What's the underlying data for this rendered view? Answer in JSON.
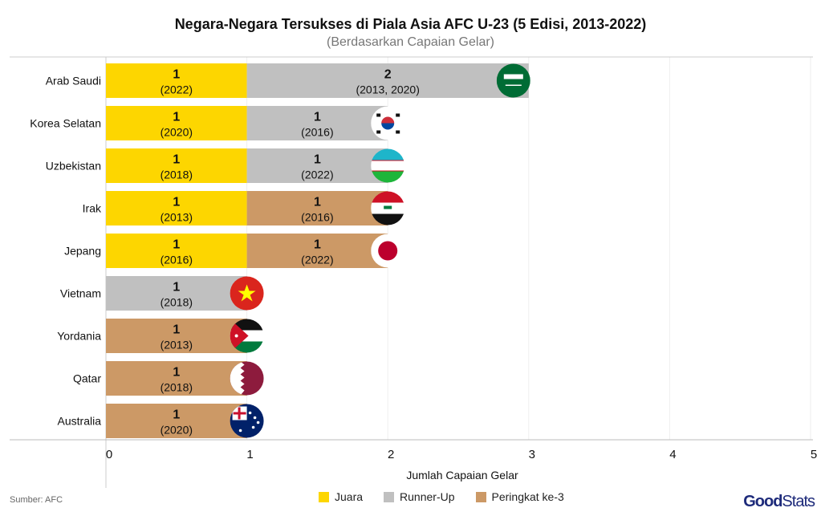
{
  "chart_data": {
    "type": "bar",
    "orientation": "horizontal-stacked",
    "title": "Negara-Negara Tersukses di Piala Asia AFC U-23 (5 Edisi, 2013-2022)",
    "subtitle": "(Berdasarkan Capaian Gelar)",
    "xlabel": "Jumlah Capaian Gelar",
    "ylabel": "",
    "xlim": [
      0,
      5
    ],
    "xticks": [
      "0",
      "1",
      "2",
      "3",
      "4",
      "5"
    ],
    "grid": true,
    "legend_placement": "bottom",
    "categories": [
      "Arab Saudi",
      "Korea Selatan",
      "Uzbekistan",
      "Irak",
      "Jepang",
      "Vietnam",
      "Yordania",
      "Qatar",
      "Australia"
    ],
    "series": [
      {
        "name": "Juara",
        "color": "#fdd600",
        "values": [
          1,
          1,
          1,
          1,
          1,
          0,
          0,
          0,
          0
        ],
        "labels": [
          "(2022)",
          "(2020)",
          "(2018)",
          "(2013)",
          "(2016)",
          "",
          "",
          "",
          ""
        ]
      },
      {
        "name": "Runner-Up",
        "color": "#c0c0c0",
        "values": [
          2,
          1,
          1,
          0,
          0,
          1,
          0,
          0,
          0
        ],
        "labels": [
          "(2013, 2020)",
          "(2016)",
          "(2022)",
          "",
          "",
          "(2018)",
          "",
          "",
          ""
        ]
      },
      {
        "name": "Peringkat ke-3",
        "color": "#cc9966",
        "values": [
          0,
          0,
          0,
          1,
          1,
          0,
          1,
          1,
          1
        ],
        "labels": [
          "",
          "",
          "",
          "(2016)",
          "(2022)",
          "",
          "(2013)",
          "(2018)",
          "(2020)"
        ]
      }
    ],
    "flags": [
      "saudi-arabia",
      "south-korea",
      "uzbekistan",
      "iraq",
      "japan",
      "vietnam",
      "jordan",
      "qatar",
      "australia"
    ]
  },
  "footer": {
    "source": "Sumber: AFC",
    "logo_bold": "Good",
    "logo_light": "Stats"
  }
}
